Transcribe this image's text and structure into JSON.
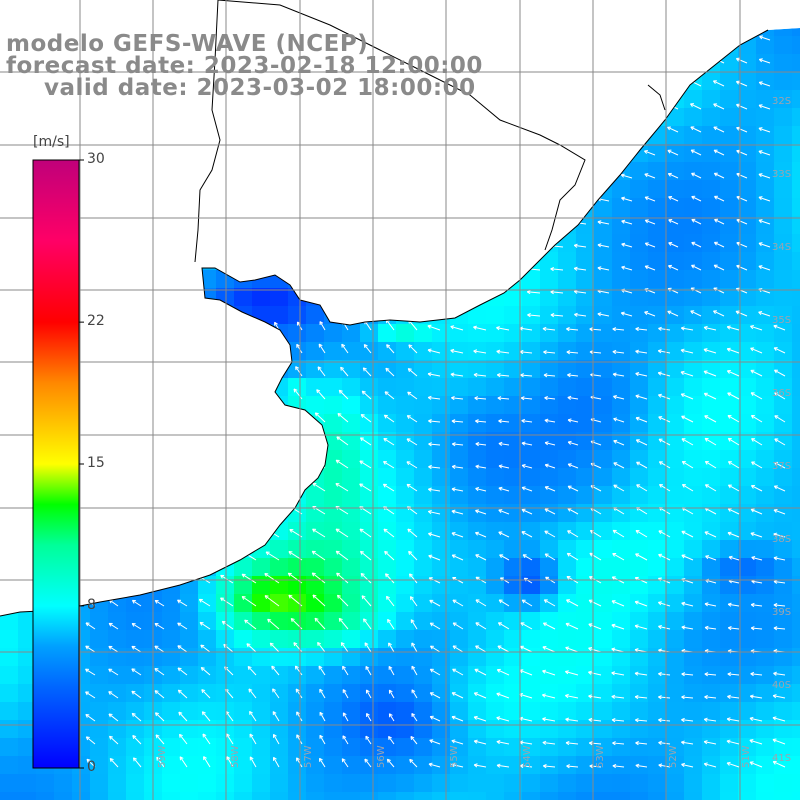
{
  "map": {
    "title_line_1": "modelo GEFS-WAVE (NCEP)",
    "title_line_2": "forecast date: 2023-02-18 12:00:00",
    "title_line_3": "valid date: 2023-03-02 18:00:00",
    "variable": "wind speed and direction",
    "colors": {
      "land": "#ffffff",
      "coastline": "#000000",
      "graticule": "#888888",
      "arrows": "#ffffff",
      "labels": "#8a8a8a"
    }
  },
  "colorbar": {
    "unit": "[m/s]",
    "range": [
      0,
      30
    ],
    "ticks": [
      "0",
      "8",
      "15",
      "22",
      "30"
    ],
    "tick_values": [
      0,
      8,
      15,
      22,
      30
    ],
    "colors": [
      "#0000ff",
      "#00a0ff",
      "#00ffff",
      "#00ff00",
      "#ffff00",
      "#ff8800",
      "#ff0000",
      "#ff0066",
      "#c0007a"
    ]
  },
  "lat_labels": [
    "32S",
    "33S",
    "34S",
    "35S",
    "36S",
    "37S",
    "38S",
    "39S",
    "40S",
    "41S"
  ],
  "lon_labels": [
    "59W",
    "58W",
    "57W",
    "56W",
    "55W",
    "54W",
    "53W",
    "52W",
    "51W"
  ],
  "field_summary": {
    "typical_speed_ms": "5-10",
    "max_speed_ms": "about 13 (Uruguay coast / Rio de la Plata)",
    "dominant_flow": "onshore, from the east-southeast"
  }
}
